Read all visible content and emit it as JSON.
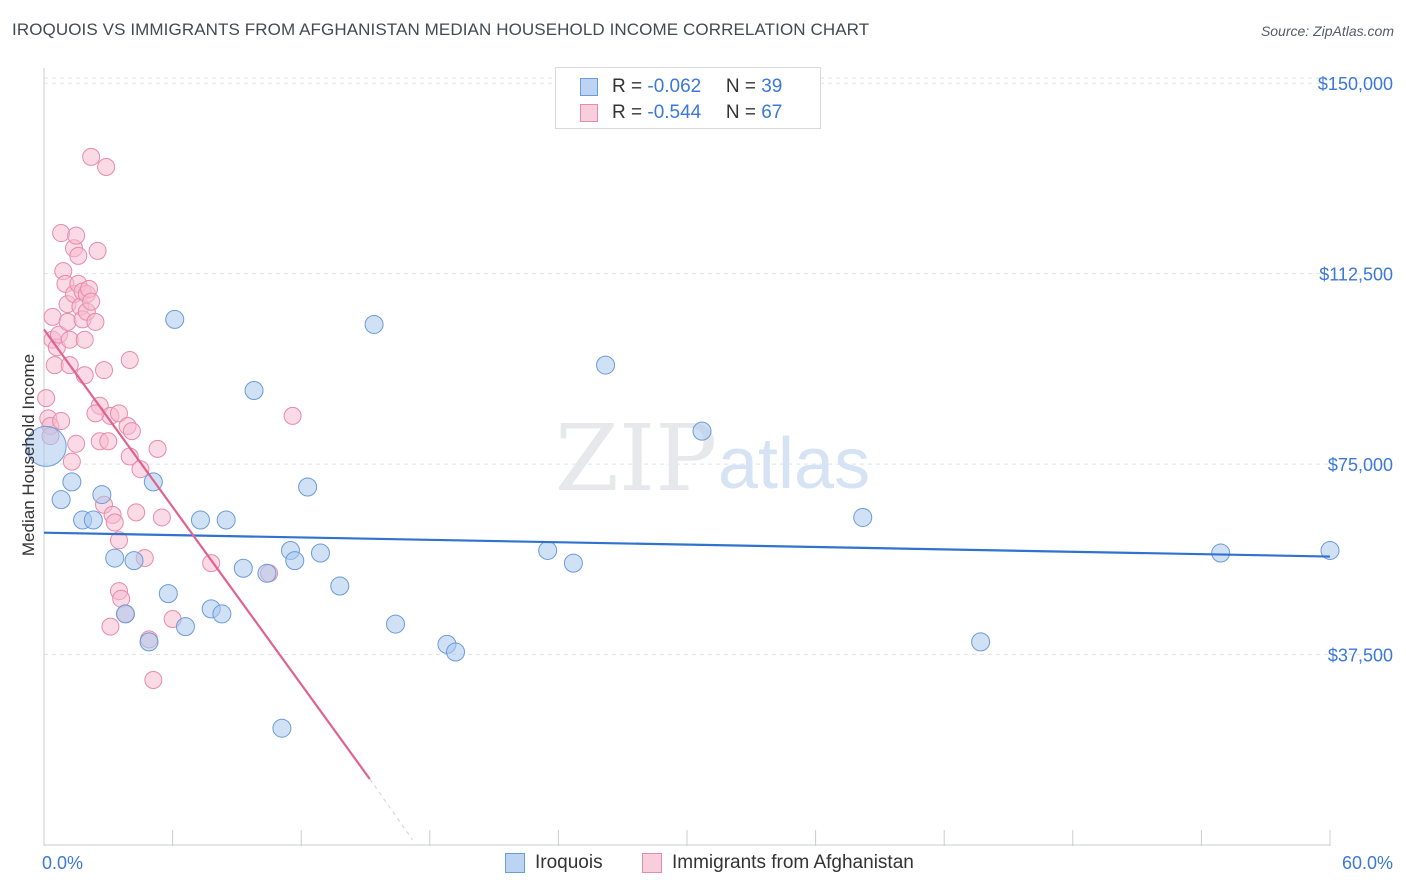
{
  "header": {
    "title": "IROQUOIS VS IMMIGRANTS FROM AFGHANISTAN MEDIAN HOUSEHOLD INCOME CORRELATION CHART",
    "source": "Source: ZipAtlas.com"
  },
  "watermark": {
    "zip": "ZIP",
    "atlas": "atlas"
  },
  "legend": {
    "iroquois": {
      "r_label": "R = ",
      "r_value": "-0.062",
      "n_label": "N = ",
      "n_value": "39"
    },
    "afghan": {
      "r_label": "R = ",
      "r_value": "-0.544",
      "n_label": "N = ",
      "n_value": "67"
    }
  },
  "bottom_legend": {
    "iroquois": "Iroquois",
    "afghan": "Immigrants from Afghanistan"
  },
  "colors": {
    "blue_fill": "#a9c8ef",
    "blue_stroke": "#6b9bd8",
    "blue_line": "#2f73cc",
    "pink_fill": "#f6bcd0",
    "pink_stroke": "#e88aab",
    "pink_line": "#e0628f",
    "axis_text": "#3b78d8",
    "grid": "#dfe3e8"
  },
  "chart_data": {
    "type": "scatter",
    "title": "IROQUOIS VS IMMIGRANTS FROM AFGHANISTAN MEDIAN HOUSEHOLD INCOME CORRELATION CHART",
    "xlabel": "",
    "ylabel": "Median Household Income",
    "xlim": [
      0,
      60
    ],
    "ylim": [
      0,
      153000
    ],
    "x_tick_labels": [
      "0.0%",
      "60.0%"
    ],
    "y_ticks": [
      37500,
      75000,
      112500,
      150000
    ],
    "y_tick_labels": [
      "$37,500",
      "$75,000",
      "$112,500",
      "$150,000"
    ],
    "grid": true,
    "series": [
      {
        "name": "Iroquois",
        "r": -0.062,
        "n": 39,
        "points": [
          [
            0.1,
            78500,
            20
          ],
          [
            0.8,
            68000,
            9
          ],
          [
            1.3,
            71500,
            9
          ],
          [
            1.8,
            64000,
            9
          ],
          [
            2.3,
            64000,
            9
          ],
          [
            2.7,
            69000,
            9
          ],
          [
            3.3,
            56500,
            9
          ],
          [
            3.8,
            45500,
            9
          ],
          [
            4.2,
            56000,
            9
          ],
          [
            4.9,
            40000,
            9
          ],
          [
            5.1,
            71500,
            9
          ],
          [
            5.8,
            49500,
            9
          ],
          [
            6.1,
            103500,
            9
          ],
          [
            6.6,
            43000,
            9
          ],
          [
            7.3,
            64000,
            9
          ],
          [
            7.8,
            46500,
            9
          ],
          [
            8.3,
            45500,
            9
          ],
          [
            8.5,
            64000,
            9
          ],
          [
            9.3,
            54500,
            9
          ],
          [
            9.8,
            89500,
            9
          ],
          [
            10.4,
            53500,
            9
          ],
          [
            11.1,
            23000,
            9
          ],
          [
            11.5,
            58000,
            9
          ],
          [
            11.7,
            56000,
            9
          ],
          [
            12.3,
            70500,
            9
          ],
          [
            12.9,
            57500,
            9
          ],
          [
            13.8,
            51000,
            9
          ],
          [
            15.4,
            102500,
            9
          ],
          [
            16.4,
            43500,
            9
          ],
          [
            18.8,
            39500,
            9
          ],
          [
            19.2,
            38000,
            9
          ],
          [
            23.5,
            58000,
            9
          ],
          [
            24.7,
            55500,
            9
          ],
          [
            26.2,
            94500,
            9
          ],
          [
            30.7,
            81500,
            9
          ],
          [
            38.2,
            64500,
            9
          ],
          [
            43.7,
            40000,
            9
          ],
          [
            54.9,
            57500,
            9
          ],
          [
            60.0,
            58000,
            9
          ]
        ],
        "trend": {
          "x0": 0,
          "y0": 61500,
          "x1": 60,
          "y1": 56800
        }
      },
      {
        "name": "Immigrants from Afghanistan",
        "r": -0.544,
        "n": 67,
        "points": [
          [
            0.1,
            88000
          ],
          [
            0.2,
            84000
          ],
          [
            0.3,
            82500
          ],
          [
            0.3,
            80500
          ],
          [
            0.4,
            104000
          ],
          [
            0.4,
            99500
          ],
          [
            0.5,
            94500
          ],
          [
            0.6,
            98000
          ],
          [
            0.7,
            100500
          ],
          [
            0.8,
            83500
          ],
          [
            0.8,
            120500
          ],
          [
            0.9,
            113000
          ],
          [
            1.0,
            110500
          ],
          [
            1.1,
            103000
          ],
          [
            1.1,
            106500
          ],
          [
            1.2,
            99500
          ],
          [
            1.2,
            94500
          ],
          [
            1.3,
            75500
          ],
          [
            1.4,
            117500
          ],
          [
            1.4,
            108500
          ],
          [
            1.5,
            120000
          ],
          [
            1.5,
            79000
          ],
          [
            1.6,
            110500
          ],
          [
            1.7,
            106000
          ],
          [
            1.8,
            109000
          ],
          [
            1.8,
            103500
          ],
          [
            1.9,
            99500
          ],
          [
            1.9,
            92500
          ],
          [
            2.0,
            108500
          ],
          [
            2.0,
            105000
          ],
          [
            2.1,
            109500
          ],
          [
            2.2,
            107000
          ],
          [
            2.4,
            103000
          ],
          [
            2.5,
            117000
          ],
          [
            2.6,
            86500
          ],
          [
            2.6,
            79500
          ],
          [
            2.8,
            93500
          ],
          [
            2.8,
            67000
          ],
          [
            3.0,
            79500
          ],
          [
            3.1,
            84500
          ],
          [
            3.2,
            65000
          ],
          [
            3.3,
            63500
          ],
          [
            3.5,
            85000
          ],
          [
            3.5,
            50000
          ],
          [
            3.6,
            48500
          ],
          [
            3.8,
            45500
          ],
          [
            3.9,
            82500
          ],
          [
            4.0,
            76500
          ],
          [
            4.1,
            81500
          ],
          [
            4.3,
            65500
          ],
          [
            4.5,
            74000
          ],
          [
            4.7,
            56500
          ],
          [
            4.9,
            40500
          ],
          [
            5.1,
            32500
          ],
          [
            5.3,
            78000
          ],
          [
            5.5,
            64500
          ],
          [
            6.0,
            44500
          ],
          [
            7.8,
            55500
          ],
          [
            10.5,
            53500
          ],
          [
            11.6,
            84500
          ],
          [
            4.0,
            95500
          ],
          [
            2.2,
            135500
          ],
          [
            2.9,
            133500
          ],
          [
            2.4,
            85000
          ],
          [
            3.1,
            43000
          ],
          [
            1.6,
            116000
          ],
          [
            3.5,
            60000
          ]
        ],
        "trend": {
          "x0": 0,
          "y0": 101500,
          "x1": 15.2,
          "y1": 13000,
          "dash_x1": 17.2,
          "dash_y1": 1000
        }
      }
    ]
  }
}
